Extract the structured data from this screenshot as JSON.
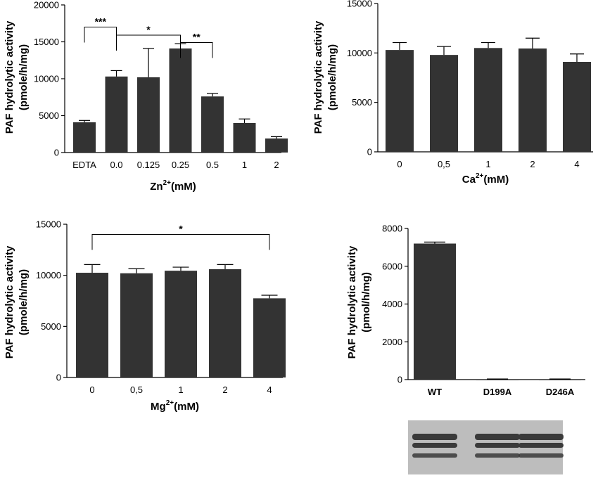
{
  "chart_data": [
    {
      "type": "bar",
      "ylabel": "PAF hydrolytic activity",
      "ylabel_unit": "(pmole/h/mg)",
      "xlabel": "Zn",
      "xlabel_sup": "2+",
      "xlabel_suffix": "(mM)",
      "categories": [
        "EDTA",
        "0.0",
        "0.125",
        "0.25",
        "0.5",
        "1",
        "2"
      ],
      "values": [
        4100,
        10300,
        10200,
        14100,
        7600,
        4000,
        1900
      ],
      "errors": [
        250,
        800,
        3900,
        650,
        400,
        550,
        250
      ],
      "ylim": [
        0,
        20000
      ],
      "yticks": [
        "0",
        "5000",
        "10000",
        "15000",
        "20000"
      ],
      "bar_color": "#333333",
      "significance": [
        {
          "from": 0,
          "to": 1,
          "label": "***",
          "level": 17000
        },
        {
          "from": 1,
          "to": 3,
          "label": "*",
          "level": 15900
        },
        {
          "from": 3,
          "to": 4,
          "label": "**",
          "level": 14900
        }
      ]
    },
    {
      "type": "bar",
      "ylabel": "PAF hydrolytic activity",
      "ylabel_unit": "(pmole/h/mg)",
      "xlabel": "Ca",
      "xlabel_sup": "2+",
      "xlabel_suffix": "(mM)",
      "categories": [
        "0",
        "0,5",
        "1",
        "2",
        "4"
      ],
      "values": [
        10300,
        9800,
        10500,
        10450,
        9100
      ],
      "errors": [
        750,
        850,
        550,
        1050,
        800
      ],
      "ylim": [
        0,
        15000
      ],
      "yticks": [
        "0",
        "5000",
        "10000",
        "15000"
      ],
      "bar_color": "#333333",
      "significance": []
    },
    {
      "type": "bar",
      "ylabel": "PAF hydrolytic activity",
      "ylabel_unit": "(pmole/h/mg)",
      "xlabel": "Mg",
      "xlabel_sup": "2+",
      "xlabel_suffix": "(mM)",
      "categories": [
        "0",
        "0,5",
        "1",
        "2",
        "4"
      ],
      "values": [
        10250,
        10200,
        10450,
        10600,
        7750
      ],
      "errors": [
        800,
        450,
        350,
        450,
        300
      ],
      "ylim": [
        0,
        15000
      ],
      "yticks": [
        "0",
        "5000",
        "10000",
        "15000"
      ],
      "bar_color": "#333333",
      "significance": [
        {
          "from": 0,
          "to": 4,
          "label": "*",
          "level": 14000
        }
      ]
    },
    {
      "type": "bar",
      "ylabel": "PAF hydrolytic activity",
      "ylabel_unit": "(pmol/h/mg)",
      "xlabel": "",
      "xlabel_sup": "",
      "xlabel_suffix": "",
      "categories": [
        "WT",
        "D199A",
        "D246A"
      ],
      "values": [
        7200,
        20,
        20
      ],
      "errors": [
        80,
        15,
        15
      ],
      "ylim": [
        0,
        8000
      ],
      "yticks": [
        "0",
        "2000",
        "4000",
        "6000",
        "8000"
      ],
      "bar_color": "#333333",
      "category_bold": true,
      "significance": []
    }
  ],
  "gel": {
    "background": "#bdbdbd",
    "band_color": "#3a3a3a"
  }
}
